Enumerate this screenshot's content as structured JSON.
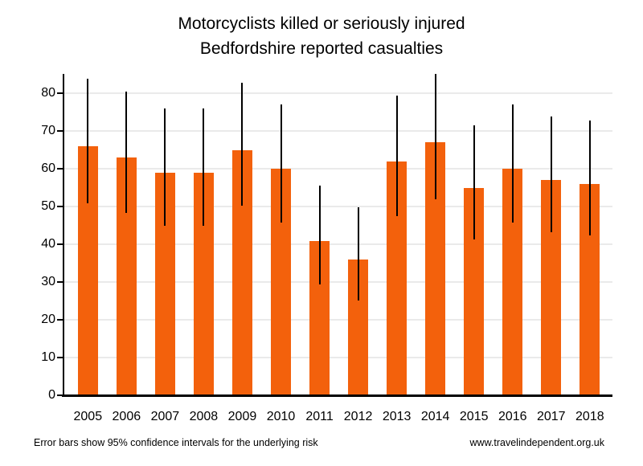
{
  "title": {
    "line1": "Motorcyclists killed or seriously injured",
    "line2": "Bedfordshire reported casualties"
  },
  "footer": {
    "note": "Error bars show 95% confidence intervals for the underlying risk",
    "website": "www.travelindependent.org.uk"
  },
  "colors": {
    "bar": "#f3610c",
    "error_bar": "#000000",
    "gridline": "#eaeaea",
    "axis": "#000000",
    "text": "#000000"
  },
  "chart_data": {
    "type": "bar",
    "title": "Motorcyclists killed or seriously injured",
    "subtitle": "Bedfordshire reported casualties",
    "xlabel": "",
    "ylabel": "",
    "categories": [
      "2005",
      "2006",
      "2007",
      "2008",
      "2009",
      "2010",
      "2011",
      "2012",
      "2013",
      "2014",
      "2015",
      "2016",
      "2017",
      "2018"
    ],
    "values": [
      66,
      63,
      59,
      59,
      65,
      60,
      41,
      36,
      62,
      67,
      55,
      60,
      57,
      56
    ],
    "error_low": [
      51.0,
      48.4,
      44.9,
      44.9,
      50.2,
      45.8,
      29.4,
      25.2,
      47.5,
      51.9,
      41.4,
      45.8,
      43.2,
      42.3
    ],
    "error_high": [
      84.0,
      80.6,
      76.1,
      76.1,
      82.9,
      77.2,
      55.6,
      49.8,
      79.5,
      85.1,
      71.6,
      77.2,
      73.9,
      72.8
    ],
    "error_bar_meaning": "95% confidence intervals for the underlying risk",
    "ylim": [
      0,
      85.5
    ],
    "yticks": [
      0,
      10,
      20,
      30,
      40,
      50,
      60,
      70,
      80
    ],
    "grid": true,
    "legend": false
  }
}
